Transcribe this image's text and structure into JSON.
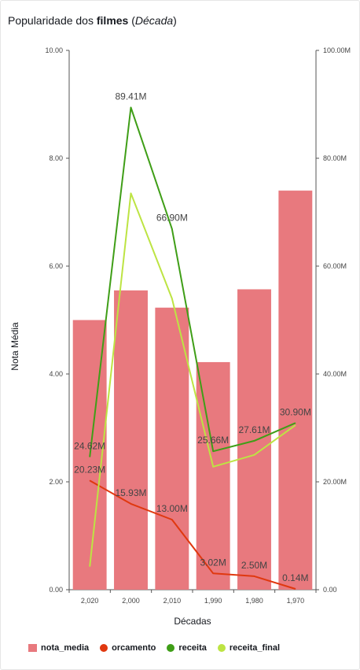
{
  "title": {
    "prefix": "Popularidade dos ",
    "bold": "filmes",
    "open": " (",
    "italic": "Década",
    "close": ")"
  },
  "colors": {
    "nota_media": "#e8797e",
    "orcamento": "#e0380f",
    "receita": "#3f9e17",
    "receita_final": "#bde443",
    "axis": "#555555"
  },
  "chart_data": {
    "type": "bar",
    "categories": [
      "2,020",
      "2,000",
      "2,010",
      "1,990",
      "1,980",
      "1,970"
    ],
    "xlabel": "Décadas",
    "ylabel": "Nota Média",
    "ylim": [
      0,
      10
    ],
    "y2lim": [
      0,
      100
    ],
    "y_ticks": [
      "0.00",
      "2.00",
      "4.00",
      "6.00",
      "8.00",
      "10.00"
    ],
    "y2_ticks": [
      "0.00",
      "20.00M",
      "40.00M",
      "60.00M",
      "80.00M",
      "100.00M"
    ],
    "series": [
      {
        "name": "nota_media",
        "type": "bar",
        "axis": "left",
        "values": [
          5.0,
          5.55,
          5.23,
          4.22,
          5.57,
          7.4
        ]
      },
      {
        "name": "orcamento",
        "type": "line",
        "axis": "right",
        "values": [
          20.23,
          15.93,
          13.0,
          3.02,
          2.5,
          0.14
        ],
        "labels": [
          "20.23M",
          "15.93M",
          "13.00M",
          "3.02M",
          "2.50M",
          "0.14M"
        ]
      },
      {
        "name": "receita",
        "type": "line",
        "axis": "right",
        "values": [
          24.62,
          89.41,
          66.9,
          25.66,
          27.61,
          30.9
        ],
        "labels": [
          "24.62M",
          "89.41M",
          "66.90M",
          "25.66M",
          "27.61M",
          "30.90M"
        ]
      },
      {
        "name": "receita_final",
        "type": "line",
        "axis": "right",
        "values": [
          4.3,
          73.5,
          54.0,
          22.8,
          25.0,
          30.5
        ]
      }
    ],
    "grid": false,
    "legend_position": "bottom-left"
  }
}
